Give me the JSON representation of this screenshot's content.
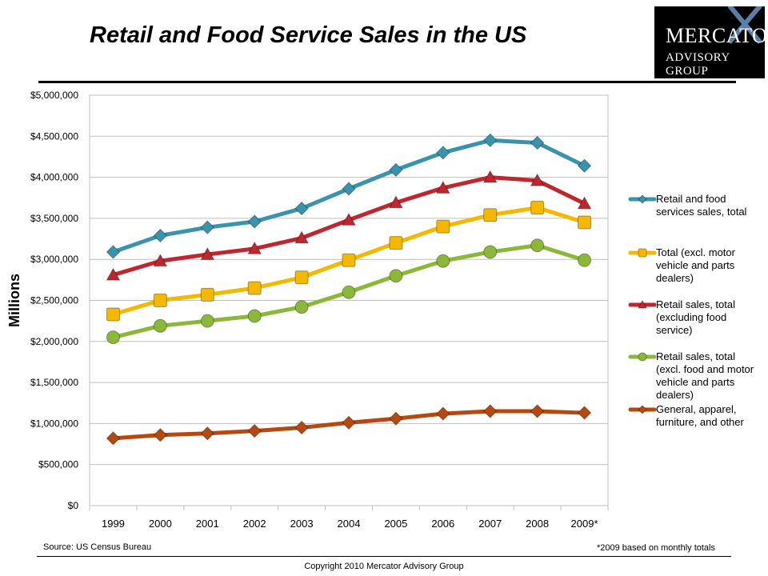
{
  "page_title": "Retail and Food Service Sales in the US",
  "logo": {
    "line1": "MERCATOR",
    "line2": "ADVISORY GROUP"
  },
  "source_text": "Source: US Census Bureau",
  "footnote": "*2009 based on monthly totals",
  "copyright": "Copyright 2010 Mercator Advisory Group",
  "chart_data": {
    "type": "line",
    "ylabel": "Millions",
    "ylim": [
      0,
      5000000
    ],
    "yticks": [
      0,
      500000,
      1000000,
      1500000,
      2000000,
      2500000,
      3000000,
      3500000,
      4000000,
      4500000,
      5000000
    ],
    "ytick_labels": [
      "$0",
      "$500,000",
      "$1,000,000",
      "$1,500,000",
      "$2,000,000",
      "$2,500,000",
      "$3,000,000",
      "$3,500,000",
      "$4,000,000",
      "$4,500,000",
      "$5,000,000"
    ],
    "categories": [
      "1999",
      "2000",
      "2001",
      "2002",
      "2003",
      "2004",
      "2005",
      "2006",
      "2007",
      "2008",
      "2009*"
    ],
    "grid": "horizontal",
    "legend_position": "right",
    "series": [
      {
        "name": "Retail and food services sales, total",
        "color": "#3a93ad",
        "marker": "diamond",
        "values": [
          3090000,
          3290000,
          3390000,
          3460000,
          3620000,
          3860000,
          4090000,
          4300000,
          4450000,
          4420000,
          4140000
        ]
      },
      {
        "name": "Total (excl. motor vehicle and parts dealers)",
        "color": "#f5b800",
        "marker": "square",
        "values": [
          2330000,
          2500000,
          2570000,
          2650000,
          2780000,
          2990000,
          3200000,
          3400000,
          3540000,
          3630000,
          3450000
        ]
      },
      {
        "name": "Retail sales, total (excluding food service)",
        "color": "#c0262e",
        "marker": "triangle",
        "values": [
          2810000,
          2980000,
          3060000,
          3130000,
          3260000,
          3480000,
          3690000,
          3870000,
          4000000,
          3960000,
          3680000
        ]
      },
      {
        "name": "Retail sales, total (excl. food and motor vehicle and parts dealers)",
        "color": "#8cb83a",
        "marker": "circle",
        "values": [
          2050000,
          2190000,
          2250000,
          2310000,
          2420000,
          2600000,
          2800000,
          2980000,
          3090000,
          3170000,
          2990000
        ]
      },
      {
        "name": "General, apparel, furniture, and other",
        "color": "#b5490f",
        "marker": "diamond",
        "values": [
          820000,
          860000,
          880000,
          910000,
          950000,
          1010000,
          1060000,
          1120000,
          1150000,
          1150000,
          1130000
        ]
      }
    ]
  }
}
